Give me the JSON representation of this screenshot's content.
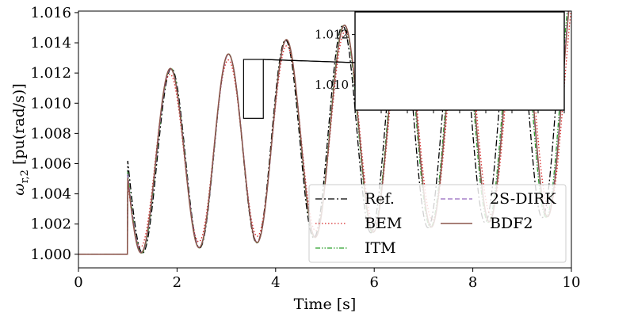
{
  "chart_data": {
    "type": "line",
    "title": "",
    "xlabel": "Time [s]",
    "ylabel": "ω_{r,2} [pu(rad/s)]",
    "ylabel_main": "ω",
    "ylabel_sub": "r,2",
    "ylabel_unit": " [pu(rad/s)]",
    "xlim": [
      0,
      10
    ],
    "ylim": [
      0.9991,
      1.0161
    ],
    "xticks": [
      "0",
      "2",
      "4",
      "6",
      "8",
      "10"
    ],
    "xtick_values": [
      0,
      2,
      4,
      6,
      8,
      10
    ],
    "yticks": [
      "1.000",
      "1.002",
      "1.004",
      "1.006",
      "1.008",
      "1.010",
      "1.012",
      "1.014",
      "1.016"
    ],
    "ytick_values": [
      1.0,
      1.002,
      1.004,
      1.006,
      1.008,
      1.01,
      1.012,
      1.014,
      1.016
    ],
    "grid": false,
    "legend_position": "bottom-right",
    "response_model": {
      "step_time": 1.0,
      "steady_value": 1.0,
      "mean_shift": 0.0058,
      "mean_rate": 0.00055,
      "amplitude": 0.0058,
      "growth": 0.045,
      "frequency_hz": 0.8635,
      "phase_offset_s": 0.29
    },
    "series": [
      {
        "name": "Ref.",
        "color": "#000000",
        "dash": "8,3,2,3",
        "width": 1.3,
        "freq_scale": 1.0,
        "amp_scale": 1.0,
        "phase_shift": -0.012
      },
      {
        "name": "BEM",
        "color": "#d62728",
        "dash": "1.5,2.5",
        "width": 1.3,
        "freq_scale": 0.978,
        "amp_scale": 0.935,
        "phase_shift": 0.03
      },
      {
        "name": "ITM",
        "color": "#2ca02c",
        "dash": "6,2,1.5,2,1.5,2",
        "width": 1.3,
        "freq_scale": 0.988,
        "amp_scale": 1.0,
        "phase_shift": 0.008
      },
      {
        "name": "2S-DIRK",
        "color": "#9467bd",
        "dash": "6,3",
        "width": 1.3,
        "freq_scale": 0.985,
        "amp_scale": 0.995,
        "phase_shift": 0.012
      },
      {
        "name": "BDF2",
        "color": "#8c564b",
        "dash": "",
        "width": 1.5,
        "freq_scale": 0.983,
        "amp_scale": 0.998,
        "phase_shift": 0.02
      }
    ],
    "inset": {
      "xlim": [
        3.35,
        3.75
      ],
      "ylim": [
        1.009,
        1.0129
      ],
      "yticks": [
        "1.010",
        "1.012"
      ],
      "ytick_values": [
        1.01,
        1.012
      ]
    }
  }
}
